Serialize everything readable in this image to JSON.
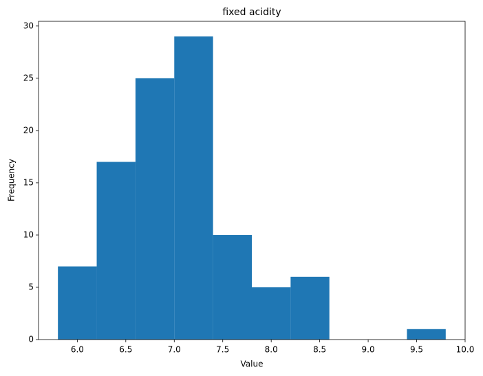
{
  "chart_data": {
    "type": "histogram",
    "title": "fixed acidity",
    "x_label": "Value",
    "y_label": "Frequency",
    "bins": [
      5.8,
      6.2,
      6.6,
      7.0,
      7.4,
      7.8,
      8.2,
      8.6,
      9.0,
      9.4,
      9.8
    ],
    "values": [
      7,
      17,
      25,
      29,
      10,
      5,
      6,
      0,
      0,
      1
    ],
    "color": "#1f77b4",
    "xlim": [
      5.6,
      10.0
    ],
    "xticks": [
      {
        "value": 6,
        "label": "6.0"
      },
      {
        "value": 6.5,
        "label": "6.5"
      },
      {
        "value": 7,
        "label": "7.0"
      },
      {
        "value": 7.5,
        "label": "7.5"
      },
      {
        "value": 8,
        "label": "8.0"
      },
      {
        "value": 8.5,
        "label": "8.5"
      },
      {
        "value": 9,
        "label": "9.0"
      },
      {
        "value": 9.5,
        "label": "9.5"
      },
      {
        "value": 10,
        "label": "10.0"
      }
    ],
    "ylim": [
      0,
      30.45
    ],
    "yticks": [
      0,
      5,
      10,
      15,
      20,
      25,
      30
    ]
  }
}
